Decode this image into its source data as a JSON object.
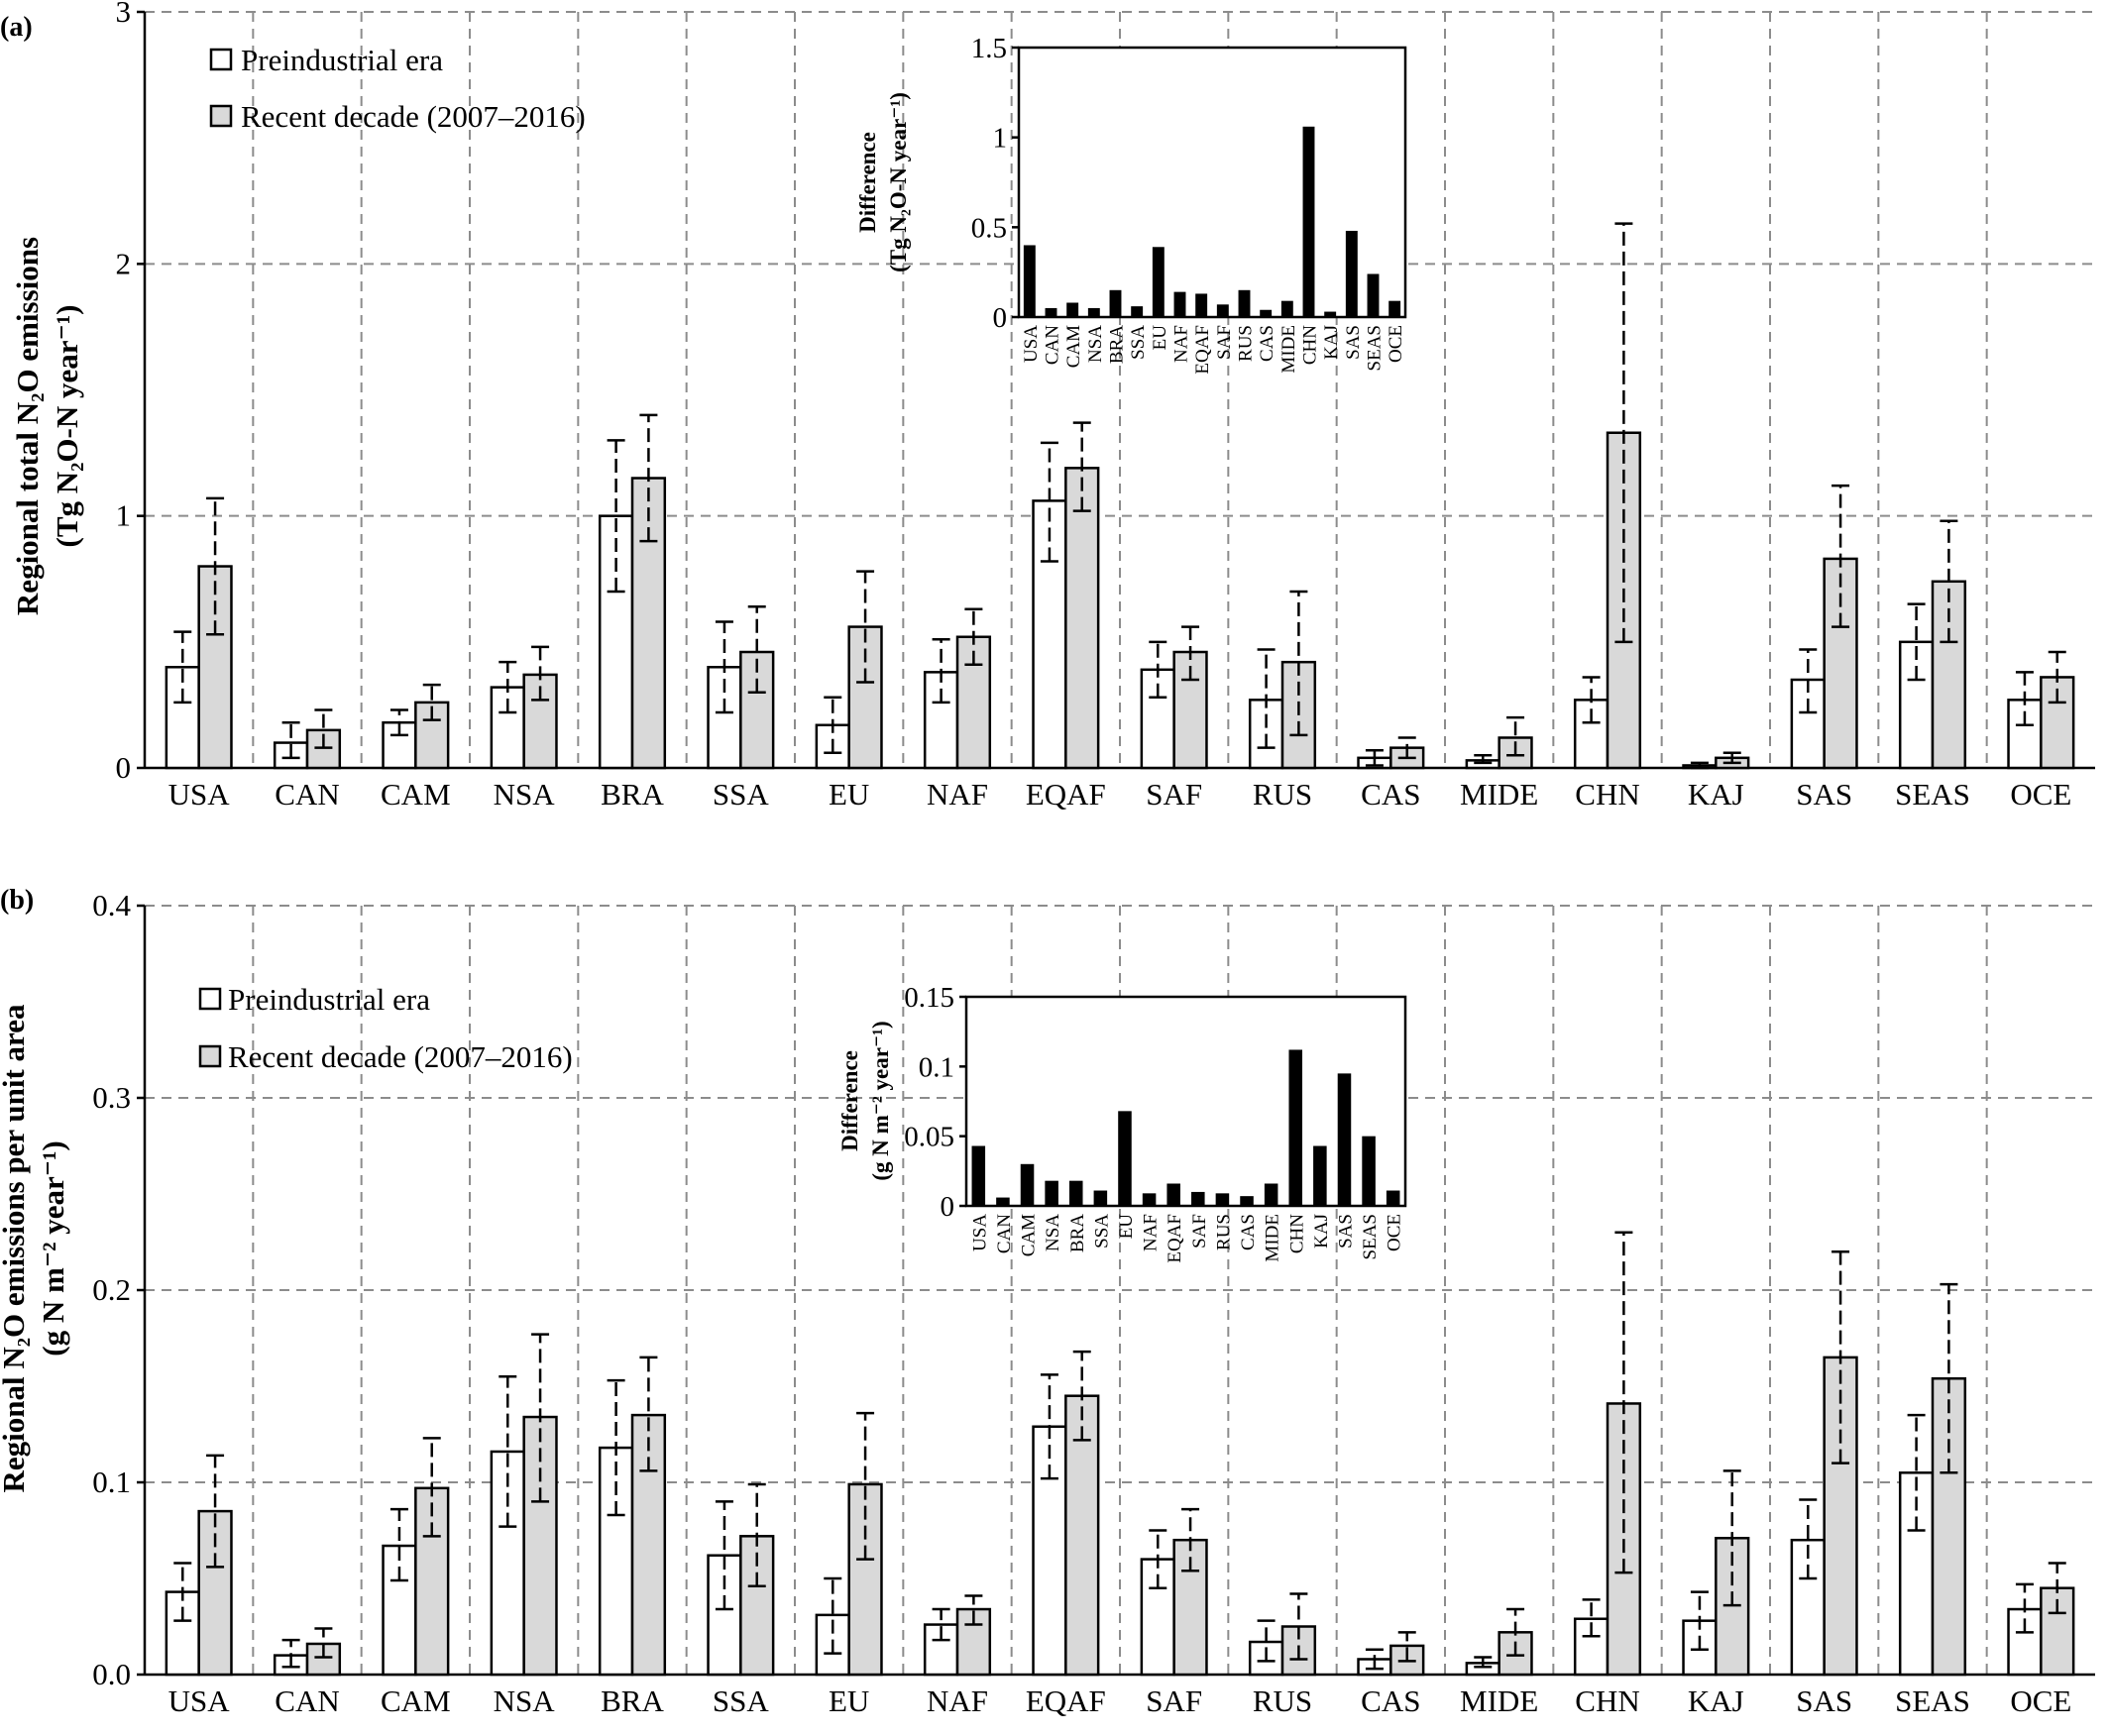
{
  "panels": [
    {
      "tag": "(a)",
      "ylabel_line1": "Regional total N₂O emissions",
      "ylabel_line2": "(Tg N₂O-N year⁻¹)",
      "legend": [
        {
          "label": "Preindustrial era",
          "color": "#ffffff"
        },
        {
          "label": "Recent decade (2007–2016)",
          "color": "#d9d9d9"
        }
      ],
      "inset_ylabel_line1": "Difference",
      "inset_ylabel_line2": "(Tg N₂O-N year⁻¹)"
    },
    {
      "tag": "(b)",
      "ylabel_line1": "Regional N₂O emissions per unit area",
      "ylabel_line2": "(g N m⁻² year⁻¹)",
      "legend": [
        {
          "label": "Preindustrial era",
          "color": "#ffffff"
        },
        {
          "label": "Recent decade (2007–2016)",
          "color": "#d9d9d9"
        }
      ],
      "inset_ylabel_line1": "Difference",
      "inset_ylabel_line2": "(g N m⁻² year⁻¹)"
    }
  ],
  "chart_data": [
    {
      "type": "bar",
      "categories": [
        "USA",
        "CAN",
        "CAM",
        "NSA",
        "BRA",
        "SSA",
        "EU",
        "NAF",
        "EQAF",
        "SAF",
        "RUS",
        "CAS",
        "MIDE",
        "CHN",
        "KAJ",
        "SAS",
        "SEAS",
        "OCE"
      ],
      "ylim": [
        0,
        3
      ],
      "yticks": [
        0,
        1,
        2,
        3
      ],
      "grid": true,
      "legend_position": "top-left",
      "series": [
        {
          "name": "Preindustrial era",
          "values": [
            0.4,
            0.1,
            0.18,
            0.32,
            1.0,
            0.4,
            0.17,
            0.38,
            1.06,
            0.39,
            0.27,
            0.04,
            0.03,
            0.27,
            0.01,
            0.35,
            0.5,
            0.27
          ],
          "err_low": [
            0.26,
            0.04,
            0.13,
            0.22,
            0.7,
            0.22,
            0.06,
            0.26,
            0.82,
            0.28,
            0.08,
            0.01,
            0.02,
            0.18,
            0.0,
            0.22,
            0.35,
            0.17
          ],
          "err_high": [
            0.54,
            0.18,
            0.23,
            0.42,
            1.3,
            0.58,
            0.28,
            0.51,
            1.29,
            0.5,
            0.47,
            0.07,
            0.05,
            0.36,
            0.02,
            0.47,
            0.65,
            0.38
          ]
        },
        {
          "name": "Recent decade (2007–2016)",
          "values": [
            0.8,
            0.15,
            0.26,
            0.37,
            1.15,
            0.46,
            0.56,
            0.52,
            1.19,
            0.46,
            0.42,
            0.08,
            0.12,
            1.33,
            0.04,
            0.83,
            0.74,
            0.36
          ],
          "err_low": [
            0.53,
            0.08,
            0.19,
            0.27,
            0.9,
            0.3,
            0.34,
            0.41,
            1.02,
            0.35,
            0.13,
            0.04,
            0.05,
            0.5,
            0.02,
            0.56,
            0.5,
            0.26
          ],
          "err_high": [
            1.07,
            0.23,
            0.33,
            0.48,
            1.4,
            0.64,
            0.78,
            0.63,
            1.37,
            0.56,
            0.7,
            0.12,
            0.2,
            2.16,
            0.06,
            1.12,
            0.98,
            0.46
          ]
        }
      ],
      "inset": {
        "type": "bar",
        "categories": [
          "USA",
          "CAN",
          "CAM",
          "NSA",
          "BRA",
          "SSA",
          "EU",
          "NAF",
          "EQAF",
          "SAF",
          "RUS",
          "CAS",
          "MIDE",
          "CHN",
          "KAJ",
          "SAS",
          "SEAS",
          "OCE"
        ],
        "values": [
          0.4,
          0.05,
          0.08,
          0.05,
          0.15,
          0.06,
          0.39,
          0.14,
          0.13,
          0.07,
          0.15,
          0.04,
          0.09,
          1.06,
          0.03,
          0.48,
          0.24,
          0.09
        ],
        "ylim": [
          0,
          1.5
        ],
        "yticks": [
          0,
          0.5,
          1,
          1.5
        ],
        "ytick_labels": [
          "0",
          "0.5",
          "1",
          "1.5"
        ]
      }
    },
    {
      "type": "bar",
      "categories": [
        "USA",
        "CAN",
        "CAM",
        "NSA",
        "BRA",
        "SSA",
        "EU",
        "NAF",
        "EQAF",
        "SAF",
        "RUS",
        "CAS",
        "MIDE",
        "CHN",
        "KAJ",
        "SAS",
        "SEAS",
        "OCE"
      ],
      "ylim": [
        0,
        0.4
      ],
      "yticks": [
        0,
        0.1,
        0.2,
        0.3,
        0.4
      ],
      "grid": true,
      "legend_position": "top-left",
      "series": [
        {
          "name": "Preindustrial era",
          "values": [
            0.043,
            0.01,
            0.067,
            0.116,
            0.118,
            0.062,
            0.031,
            0.026,
            0.129,
            0.06,
            0.017,
            0.008,
            0.006,
            0.029,
            0.028,
            0.07,
            0.105,
            0.034
          ],
          "err_low": [
            0.028,
            0.004,
            0.049,
            0.077,
            0.083,
            0.034,
            0.011,
            0.018,
            0.102,
            0.045,
            0.007,
            0.003,
            0.004,
            0.02,
            0.013,
            0.05,
            0.075,
            0.022
          ],
          "err_high": [
            0.058,
            0.018,
            0.086,
            0.155,
            0.153,
            0.09,
            0.05,
            0.034,
            0.156,
            0.075,
            0.028,
            0.013,
            0.009,
            0.039,
            0.043,
            0.091,
            0.135,
            0.047
          ]
        },
        {
          "name": "Recent decade (2007–2016)",
          "values": [
            0.085,
            0.016,
            0.097,
            0.134,
            0.135,
            0.072,
            0.099,
            0.034,
            0.145,
            0.07,
            0.025,
            0.015,
            0.022,
            0.141,
            0.071,
            0.165,
            0.154,
            0.045
          ],
          "err_low": [
            0.056,
            0.009,
            0.072,
            0.09,
            0.106,
            0.046,
            0.06,
            0.026,
            0.122,
            0.054,
            0.008,
            0.007,
            0.01,
            0.053,
            0.036,
            0.11,
            0.105,
            0.032
          ],
          "err_high": [
            0.114,
            0.024,
            0.123,
            0.177,
            0.165,
            0.099,
            0.136,
            0.041,
            0.168,
            0.086,
            0.042,
            0.022,
            0.034,
            0.23,
            0.106,
            0.22,
            0.203,
            0.058
          ]
        }
      ],
      "inset": {
        "type": "bar",
        "categories": [
          "USA",
          "CAN",
          "CAM",
          "NSA",
          "BRA",
          "SSA",
          "EU",
          "NAF",
          "EQAF",
          "SAF",
          "RUS",
          "CAS",
          "MIDE",
          "CHN",
          "KAJ",
          "SAS",
          "SEAS",
          "OCE"
        ],
        "values": [
          0.043,
          0.006,
          0.03,
          0.018,
          0.018,
          0.011,
          0.068,
          0.009,
          0.016,
          0.01,
          0.009,
          0.007,
          0.016,
          0.112,
          0.043,
          0.095,
          0.05,
          0.011
        ],
        "ylim": [
          0,
          0.15
        ],
        "yticks": [
          0,
          0.05,
          0.1,
          0.15
        ],
        "ytick_labels": [
          "0",
          "0.05",
          "0.1",
          "0.15"
        ]
      }
    }
  ]
}
